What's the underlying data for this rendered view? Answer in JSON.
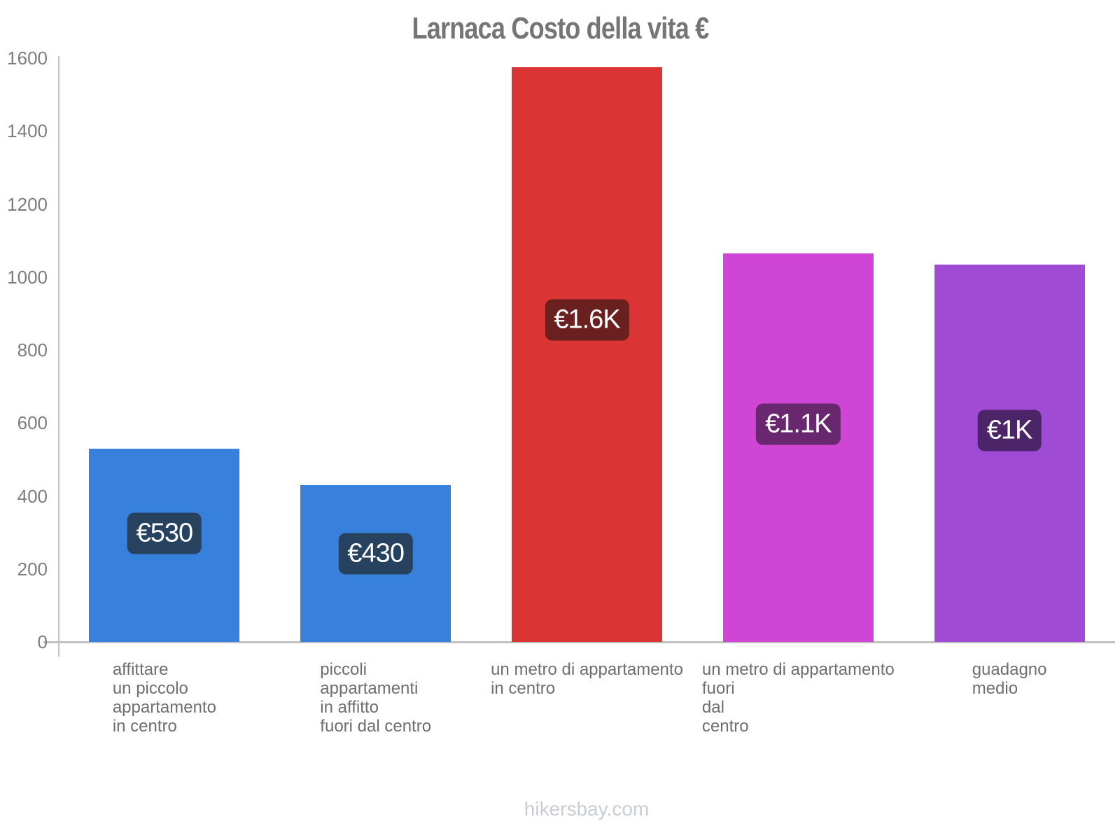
{
  "title": "Larnaca Costo della vita €",
  "footer": "hikersbay.com",
  "colors": {
    "title_text": "#757575",
    "tick_text": "#7d7d7d",
    "category_text": "#6e6e6e",
    "value_text": "#ffffff",
    "axis_line": "#c2c2c2",
    "footer_text": "#c8ccd4"
  },
  "chart_data": {
    "type": "bar",
    "title": "Larnaca Costo della vita €",
    "xlabel": "",
    "ylabel": "",
    "ylim": [
      0,
      1600
    ],
    "yticks": [
      0,
      200,
      400,
      600,
      800,
      1000,
      1200,
      1400,
      1600
    ],
    "grid": false,
    "legend": false,
    "currency": "EUR",
    "categories": [
      "affittare un piccolo appartamento in centro",
      "piccoli appartamenti in affitto fuori dal centro",
      "un metro di appartamento in centro",
      "un metro di appartamento fuori dal centro",
      "guadagno medio"
    ],
    "category_lines": [
      [
        "affittare",
        "un piccolo",
        "appartamento",
        "in centro"
      ],
      [
        "piccoli",
        "appartamenti",
        "in affitto",
        "fuori dal centro"
      ],
      [
        "un metro di appartamento",
        "in centro"
      ],
      [
        "un metro di appartamento",
        "fuori",
        "dal",
        "centro"
      ],
      [
        "guadagno",
        "medio"
      ]
    ],
    "values": [
      530,
      430,
      1575,
      1065,
      1035
    ],
    "bar_labels": [
      "€530",
      "€430",
      "€1.6K",
      "€1.1K",
      "€1K"
    ],
    "bar_colors": [
      "#3781dc",
      "#3781dc",
      "#db3434",
      "#cf45d5",
      "#a04bd5"
    ],
    "bar_label_bg": [
      "#27425f",
      "#6b2020",
      "#692770",
      "#4b2568"
    ],
    "bar_label_bg_per_bar": [
      "#27425f",
      "#27425f",
      "#6b2020",
      "#692770",
      "#4b2568"
    ]
  }
}
